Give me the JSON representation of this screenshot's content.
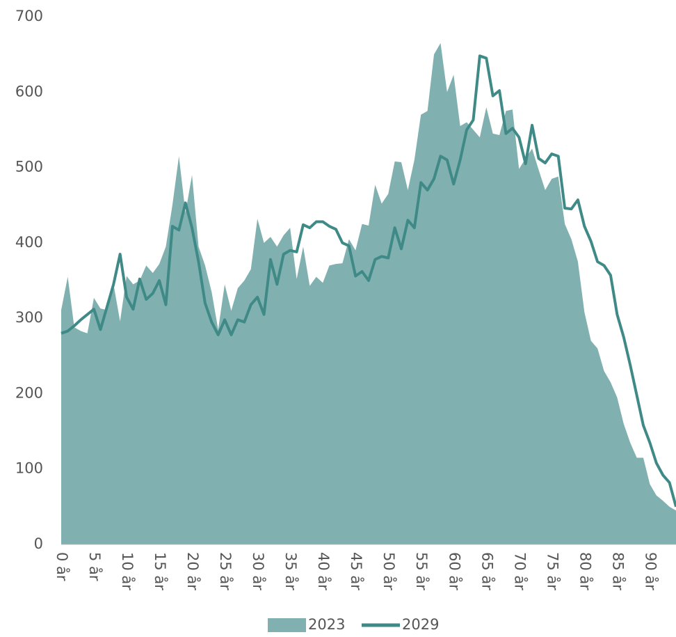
{
  "chart_data": {
    "type": "area_line",
    "categories": [
      "0 år",
      null,
      null,
      null,
      null,
      "5 år",
      null,
      null,
      null,
      null,
      "10 år",
      null,
      null,
      null,
      null,
      "15 år",
      null,
      null,
      null,
      null,
      "20 år",
      null,
      null,
      null,
      null,
      "25 år",
      null,
      null,
      null,
      null,
      "30 år",
      null,
      null,
      null,
      null,
      "35 år",
      null,
      null,
      null,
      null,
      "40 år",
      null,
      null,
      null,
      null,
      "45 år",
      null,
      null,
      null,
      null,
      "50 år",
      null,
      null,
      null,
      null,
      "55 år",
      null,
      null,
      null,
      null,
      "60 år",
      null,
      null,
      null,
      null,
      "65 år",
      null,
      null,
      null,
      null,
      "70 år",
      null,
      null,
      null,
      null,
      "75 år",
      null,
      null,
      null,
      null,
      "80 år",
      null,
      null,
      null,
      null,
      "85 år",
      null,
      null,
      null,
      null,
      "90 år",
      null,
      null,
      null,
      null
    ],
    "series": [
      {
        "name": "2023",
        "kind": "area",
        "color": "#80b1b0",
        "values": [
          311,
          355,
          288,
          283,
          280,
          327,
          313,
          311,
          345,
          296,
          356,
          345,
          350,
          370,
          360,
          372,
          395,
          450,
          515,
          440,
          490,
          395,
          370,
          335,
          285,
          345,
          310,
          340,
          350,
          365,
          432,
          400,
          408,
          395,
          410,
          420,
          352,
          395,
          343,
          355,
          347,
          370,
          372,
          373,
          405,
          390,
          425,
          423,
          477,
          452,
          465,
          508,
          507,
          470,
          510,
          570,
          575,
          650,
          665,
          600,
          623,
          555,
          560,
          550,
          540,
          580,
          545,
          543,
          575,
          577,
          498,
          512,
          525,
          497,
          470,
          485,
          488,
          425,
          405,
          375,
          308,
          270,
          260,
          230,
          215,
          195,
          160,
          135,
          115,
          115,
          80,
          65,
          58,
          50,
          45
        ]
      },
      {
        "name": "2029",
        "kind": "line",
        "color": "#3f8a87",
        "values": [
          280,
          283,
          290,
          298,
          305,
          312,
          285,
          315,
          345,
          385,
          328,
          312,
          352,
          325,
          333,
          350,
          318,
          422,
          417,
          453,
          420,
          375,
          320,
          295,
          278,
          298,
          278,
          298,
          295,
          318,
          328,
          305,
          378,
          345,
          385,
          390,
          388,
          424,
          420,
          428,
          428,
          422,
          418,
          400,
          396,
          356,
          362,
          350,
          378,
          382,
          380,
          420,
          392,
          430,
          420,
          480,
          470,
          485,
          515,
          510,
          478,
          510,
          550,
          563,
          648,
          645,
          595,
          602,
          545,
          552,
          540,
          505,
          556,
          512,
          506,
          518,
          515,
          446,
          445,
          457,
          422,
          402,
          375,
          370,
          357,
          305,
          275,
          238,
          198,
          158,
          135,
          108,
          92,
          82,
          50
        ]
      }
    ],
    "ylim": [
      0,
      700
    ],
    "yticks": [
      0,
      100,
      200,
      300,
      400,
      500,
      600,
      700
    ],
    "grid": false
  }
}
